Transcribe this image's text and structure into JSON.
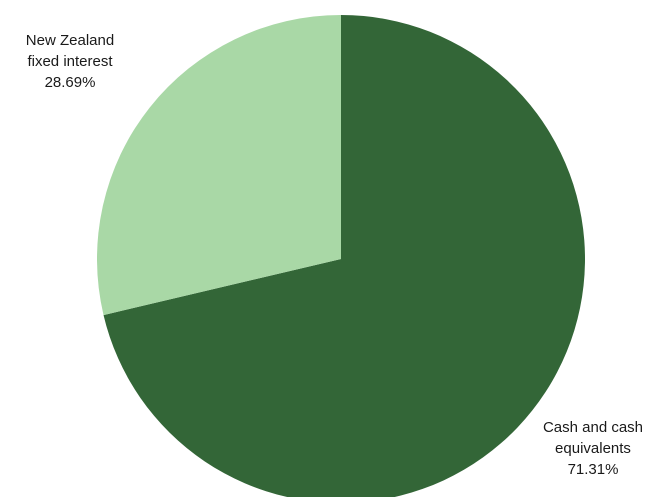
{
  "chart_data": {
    "type": "pie",
    "title": "",
    "start_angle_deg": 0,
    "direction": "clockwise",
    "slices": [
      {
        "name": "Cash and cash equivalents",
        "value": 71.31,
        "label_lines": [
          "Cash and cash",
          "equivalents",
          "71.31%"
        ],
        "color": "#336637"
      },
      {
        "name": "New Zealand fixed interest",
        "value": 28.69,
        "label_lines": [
          "New Zealand",
          "fixed interest",
          "28.69%"
        ],
        "color": "#a9d8a6"
      }
    ],
    "legend": "none"
  }
}
